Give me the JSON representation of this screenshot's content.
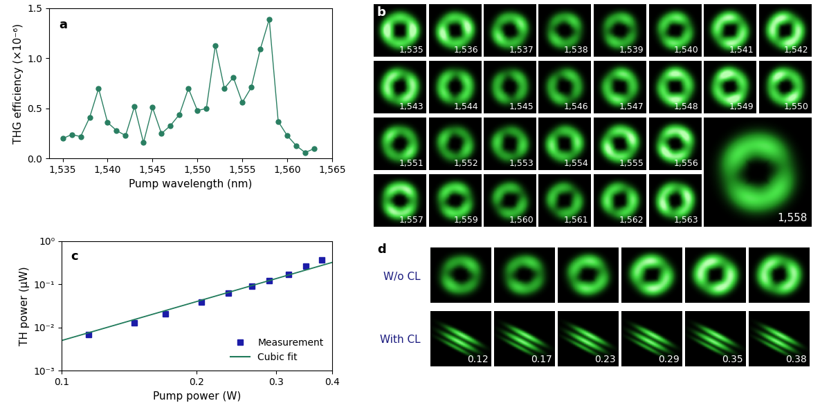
{
  "chart_data": [
    {
      "type": "line",
      "title": "a",
      "x_label": "Pump wavelength (nm)",
      "y_label": "THG efficiency (×10⁻⁶)",
      "x": [
        1535,
        1536,
        1537,
        1538,
        1539,
        1540,
        1541,
        1542,
        1543,
        1544,
        1545,
        1546,
        1547,
        1548,
        1549,
        1550,
        1551,
        1552,
        1553,
        1554,
        1555,
        1556,
        1557,
        1558,
        1559,
        1560,
        1561,
        1562,
        1563
      ],
      "series": [
        {
          "name": "THG efficiency",
          "color": "#2a7f62",
          "marker": "circle",
          "line_style": "solid",
          "values": [
            0.2,
            0.24,
            0.22,
            0.41,
            0.7,
            0.36,
            0.28,
            0.23,
            0.52,
            0.16,
            0.51,
            0.25,
            0.33,
            0.44,
            0.7,
            0.48,
            0.5,
            1.13,
            0.7,
            0.81,
            0.56,
            0.71,
            1.09,
            1.39,
            0.37,
            0.23,
            0.13,
            0.06,
            0.1
          ],
          "errors": [
            0.01,
            0.01,
            0.01,
            0.01,
            0.01,
            0.01,
            0.01,
            0.01,
            0.01,
            0.01,
            0.01,
            0.01,
            0.01,
            0.01,
            0.01,
            0.01,
            0.01,
            0.01,
            0.01,
            0.01,
            0.01,
            0.01,
            0.01,
            0.01,
            0.01,
            0.01,
            0.01,
            0.01,
            0.01
          ]
        }
      ],
      "xlim": [
        1533.5,
        1565
      ],
      "xticks": [
        {
          "value": 1535,
          "label": "1,535"
        },
        {
          "value": 1540,
          "label": "1,540"
        },
        {
          "value": 1545,
          "label": "1,545"
        },
        {
          "value": 1550,
          "label": "1,550"
        },
        {
          "value": 1555,
          "label": "1,555"
        },
        {
          "value": 1560,
          "label": "1,560"
        },
        {
          "value": 1565,
          "label": "1,565"
        }
      ],
      "ylim": [
        0,
        1.5
      ],
      "yticks": [
        {
          "value": 0,
          "label": "0.0"
        },
        0.5,
        {
          "value": 1.0,
          "label": "1.0"
        },
        1.5
      ]
    },
    {
      "type": "scatter",
      "title": "c",
      "log": true,
      "x_label": "Pump power (W)",
      "y_label": "TH power (μW)",
      "series": [
        {
          "name": "Measurement",
          "type": "scatter",
          "color": "#1c1ca8",
          "marker": "square",
          "x": [
            0.115,
            0.145,
            0.17,
            0.205,
            0.235,
            0.265,
            0.29,
            0.32,
            0.35,
            0.38
          ],
          "values": [
            0.0068,
            0.013,
            0.021,
            0.039,
            0.063,
            0.092,
            0.12,
            0.17,
            0.26,
            0.36
          ]
        },
        {
          "name": "Cubic fit",
          "type": "line",
          "color": "#1f7a5a",
          "line_style": "solid",
          "x": [
            0.1,
            0.4
          ],
          "values": [
            0.005,
            0.32
          ]
        }
      ],
      "xlim": [
        0.1,
        0.4
      ],
      "xticks": [
        0.1,
        0.2,
        0.3,
        0.4
      ],
      "ylim": [
        0.001,
        1
      ],
      "yticks": [
        {
          "value": 0.001,
          "label": "10⁻³"
        },
        {
          "value": 0.01,
          "label": "10⁻²"
        },
        {
          "value": 0.1,
          "label": "10⁻¹"
        },
        {
          "value": 1,
          "label": "10⁰"
        }
      ],
      "legend": "lower right"
    }
  ],
  "panel_b": {
    "title": "b",
    "tiles": [
      "1,535",
      "1,536",
      "1,537",
      "1,538",
      "1,539",
      "1,540",
      "1,541",
      "1,542",
      "1,543",
      "1,544",
      "1,545",
      "1,546",
      "1,547",
      "1,548",
      "1,549",
      "1,550",
      "1,551",
      "1,552",
      "1,553",
      "1,554",
      "1,555",
      "1,556",
      "1,557",
      "1,559",
      "1,560",
      "1,561",
      "1,562",
      "1,563"
    ],
    "large_tile": "1,558"
  },
  "panel_d": {
    "title": "d",
    "rows": [
      "W/o CL",
      "With CL"
    ],
    "powers": [
      0.12,
      0.17,
      0.23,
      0.29,
      0.35,
      0.38
    ]
  }
}
